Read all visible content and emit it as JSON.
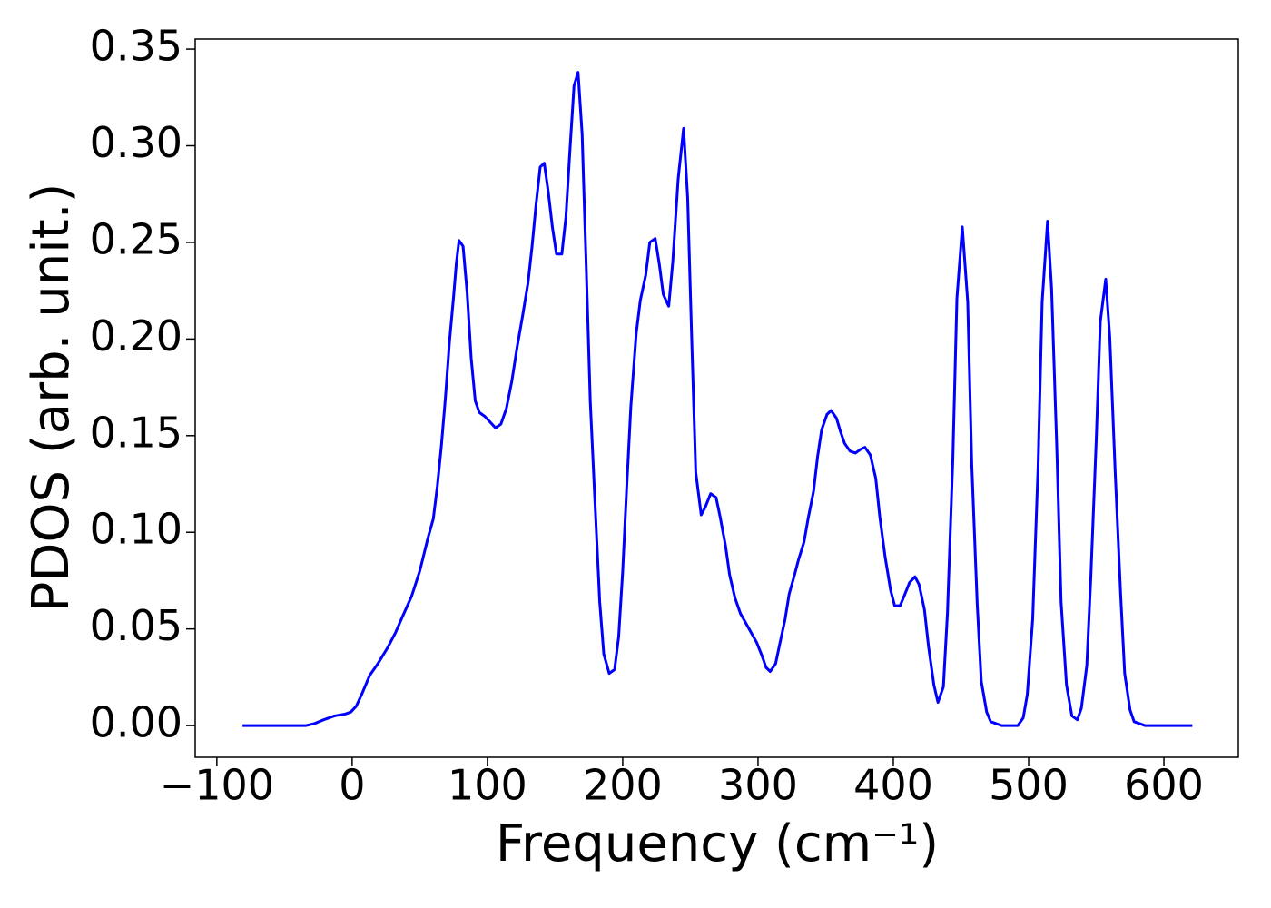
{
  "chart_data": {
    "type": "line",
    "xlabel": "Frequency (cm⁻¹)",
    "ylabel": "PDOS (arb. unit.)",
    "color": "#0000ff",
    "x": [
      -81,
      -34,
      -28,
      -21,
      -13,
      -5,
      -1,
      3,
      7,
      13,
      19,
      26,
      32,
      37,
      44,
      50,
      56,
      60,
      63,
      66,
      69,
      72,
      75,
      77,
      79,
      82,
      85,
      88,
      91,
      94,
      98,
      102,
      106,
      110,
      114,
      118,
      122,
      126,
      130,
      133,
      136,
      139,
      142,
      145,
      148,
      151,
      155,
      158,
      161,
      164,
      167,
      170,
      173,
      176,
      180,
      183,
      186,
      190,
      194,
      197,
      200,
      203,
      206,
      210,
      213,
      217,
      220,
      224,
      227,
      230,
      234,
      237,
      241,
      245,
      248,
      251,
      254,
      258,
      261,
      265,
      269,
      272,
      276,
      279,
      283,
      287,
      291,
      295,
      299,
      303,
      306,
      309,
      313,
      316,
      320,
      323,
      327,
      330,
      334,
      337,
      341,
      344,
      347,
      351,
      354,
      358,
      361,
      364,
      368,
      372,
      376,
      379,
      383,
      387,
      390,
      394,
      398,
      401,
      405,
      408,
      412,
      416,
      419,
      423,
      426,
      430,
      433,
      437,
      440,
      444,
      447,
      451,
      455,
      458,
      462,
      465,
      469,
      472,
      476,
      480,
      484,
      488,
      492,
      496,
      499,
      503,
      507,
      510,
      514,
      517,
      521,
      524,
      528,
      532,
      536,
      539,
      543,
      546,
      550,
      553,
      557,
      560,
      564,
      568,
      571,
      575,
      578,
      582,
      586,
      621
    ],
    "values": [
      0,
      0,
      0.001,
      0.003,
      0.005,
      0.006,
      0.007,
      0.01,
      0.016,
      0.026,
      0.032,
      0.04,
      0.048,
      0.056,
      0.067,
      0.08,
      0.097,
      0.107,
      0.124,
      0.145,
      0.17,
      0.199,
      0.222,
      0.239,
      0.251,
      0.248,
      0.224,
      0.19,
      0.168,
      0.162,
      0.16,
      0.157,
      0.154,
      0.156,
      0.164,
      0.178,
      0.196,
      0.212,
      0.229,
      0.248,
      0.27,
      0.289,
      0.291,
      0.276,
      0.258,
      0.244,
      0.244,
      0.263,
      0.298,
      0.331,
      0.338,
      0.306,
      0.238,
      0.168,
      0.108,
      0.064,
      0.037,
      0.027,
      0.029,
      0.046,
      0.08,
      0.124,
      0.165,
      0.203,
      0.22,
      0.233,
      0.25,
      0.252,
      0.239,
      0.223,
      0.217,
      0.24,
      0.283,
      0.309,
      0.273,
      0.2,
      0.131,
      0.109,
      0.113,
      0.12,
      0.118,
      0.108,
      0.093,
      0.078,
      0.066,
      0.058,
      0.053,
      0.048,
      0.043,
      0.036,
      0.03,
      0.028,
      0.032,
      0.042,
      0.055,
      0.068,
      0.078,
      0.086,
      0.095,
      0.107,
      0.121,
      0.139,
      0.153,
      0.161,
      0.163,
      0.159,
      0.152,
      0.146,
      0.142,
      0.141,
      0.143,
      0.144,
      0.14,
      0.128,
      0.108,
      0.087,
      0.07,
      0.062,
      0.062,
      0.067,
      0.074,
      0.077,
      0.073,
      0.06,
      0.041,
      0.021,
      0.012,
      0.02,
      0.058,
      0.138,
      0.221,
      0.258,
      0.219,
      0.135,
      0.063,
      0.023,
      0.007,
      0.002,
      0.001,
      0,
      0,
      0,
      0,
      0.004,
      0.016,
      0.055,
      0.134,
      0.219,
      0.261,
      0.226,
      0.14,
      0.064,
      0.021,
      0.005,
      0.003,
      0.009,
      0.031,
      0.077,
      0.148,
      0.209,
      0.231,
      0.201,
      0.131,
      0.068,
      0.027,
      0.008,
      0.002,
      0.001,
      0,
      0
    ],
    "xlim": [
      -116,
      655
    ],
    "xticks": [
      {
        "value": -100,
        "label": "−100"
      },
      0,
      100,
      200,
      300,
      400,
      500,
      600
    ],
    "ylim": [
      -0.0164,
      0.3552
    ],
    "yticks": [
      {
        "value": 0,
        "label": "0.00"
      },
      0.05,
      {
        "value": 0.1,
        "label": "0.10"
      },
      0.15,
      {
        "value": 0.2,
        "label": "0.20"
      },
      0.25,
      {
        "value": 0.3,
        "label": "0.30"
      },
      0.35
    ]
  }
}
